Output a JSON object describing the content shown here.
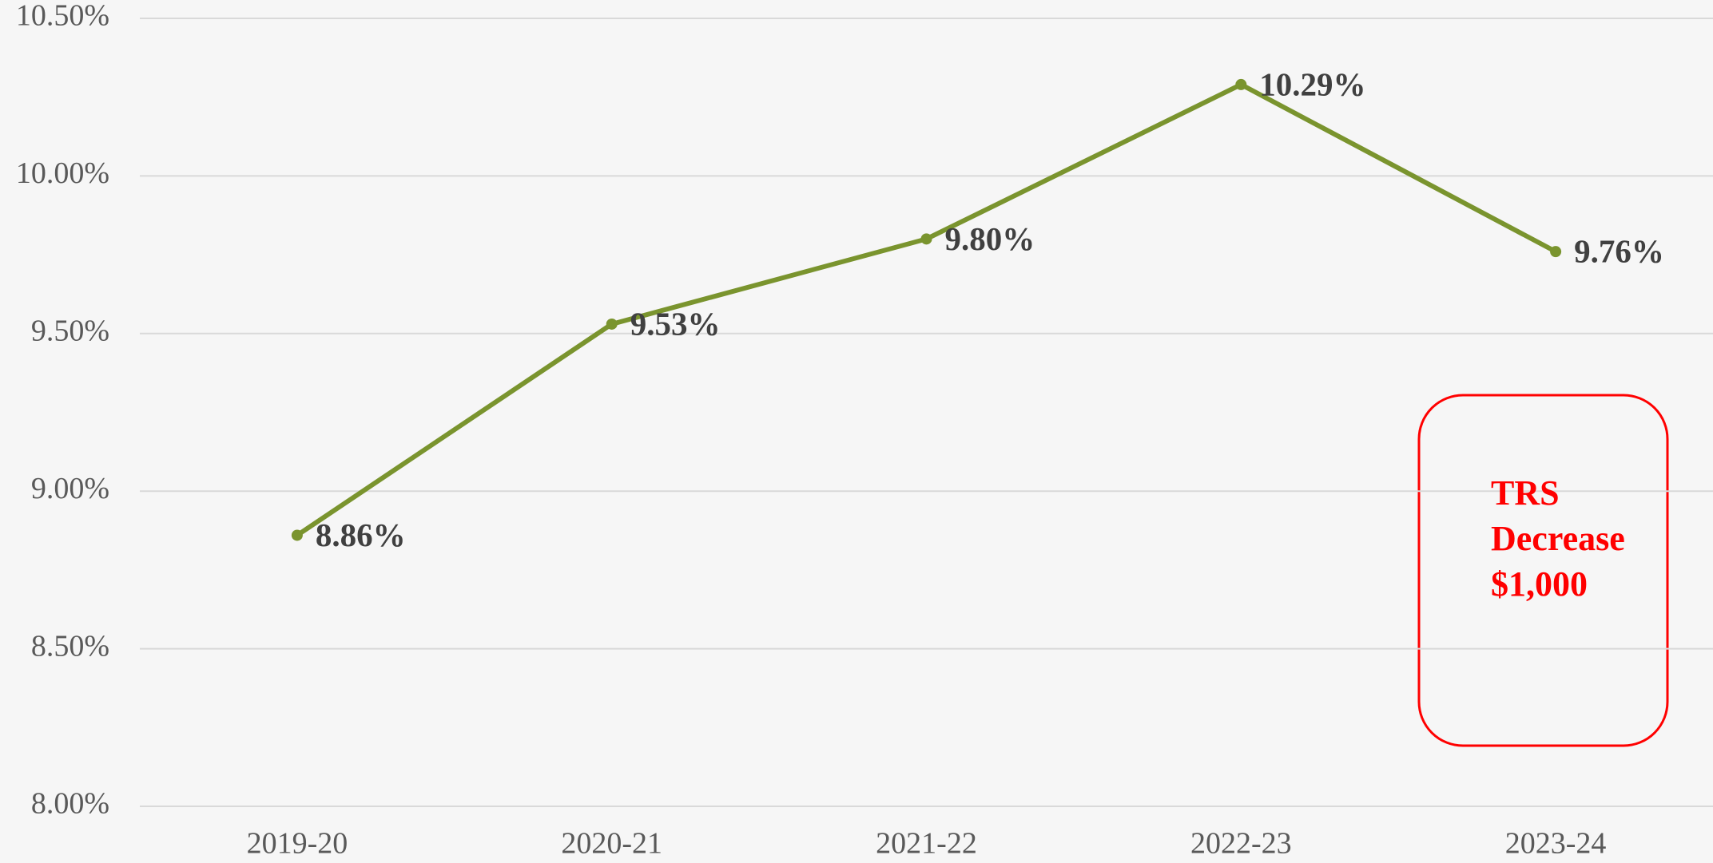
{
  "chart_data": {
    "type": "line",
    "categories": [
      "2019-20",
      "2020-21",
      "2021-22",
      "2022-23",
      "2023-24"
    ],
    "series": [
      {
        "name": "Rate",
        "color": "#7a942e",
        "values": [
          8.86,
          9.53,
          9.8,
          10.29,
          9.76
        ],
        "value_labels": [
          "8.86%",
          "9.53%",
          "9.80%",
          "10.29%",
          "9.76%"
        ]
      }
    ],
    "ylim": [
      8.0,
      10.5
    ],
    "yticks": [
      {
        "value": 8.0,
        "label": "8.00%"
      },
      {
        "value": 8.5,
        "label": "8.50%"
      },
      {
        "value": 9.0,
        "label": "9.00%"
      },
      {
        "value": 9.5,
        "label": "9.50%"
      },
      {
        "value": 10.0,
        "label": "10.00%"
      },
      {
        "value": 10.5,
        "label": "10.50%"
      }
    ],
    "grid": true,
    "annotation": [
      "TRS",
      "Decrease",
      "$1,000"
    ]
  }
}
